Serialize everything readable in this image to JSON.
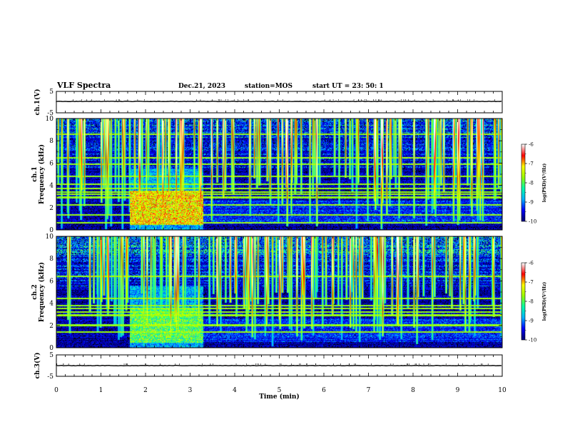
{
  "header": {
    "title": "VLF Spectra",
    "date": "Dec.21, 2023",
    "station": "station=MOS",
    "start_ut": "start  UT =   23: 50: 1"
  },
  "chart_data": {
    "type": "heatmap",
    "xlabel": "Time  (min)",
    "xlim": [
      0,
      10
    ],
    "x_ticks": [
      "0",
      "1",
      "2",
      "3",
      "4",
      "5",
      "6",
      "7",
      "8",
      "9",
      "10"
    ],
    "waveform_top": {
      "ylabel": "ch.1(V)",
      "ylim": [
        -5,
        5
      ],
      "y_ticks": [
        "5",
        "-5"
      ]
    },
    "spectrogram_ch1": {
      "ylabel": "ch.1\nFrequency (kHz)",
      "ylim": [
        0,
        10
      ],
      "y_ticks": [
        "0",
        "2",
        "4",
        "6",
        "8",
        "10"
      ],
      "burst_window_min": [
        1.65,
        3.3
      ],
      "horizontal_lines_khz": [
        0.6,
        1.3,
        2.2,
        2.9,
        3.2,
        3.4,
        3.7,
        4.1,
        4.8,
        5.9,
        6.5,
        8.6
      ],
      "sferic_rate_per_min": 14
    },
    "spectrogram_ch2": {
      "ylabel": "ch.2\nFrequency (kHz)",
      "ylim": [
        0,
        10
      ],
      "y_ticks": [
        "0",
        "2",
        "4",
        "6",
        "8",
        "10"
      ],
      "burst_window_min": [
        1.65,
        3.3
      ],
      "horizontal_lines_khz": [
        1.4,
        2.0,
        2.9,
        3.2,
        3.5,
        3.8,
        4.4,
        6.4
      ],
      "sferic_rate_per_min": 14
    },
    "waveform_bottom": {
      "ylabel": "ch.3(V)",
      "ylim": [
        -5,
        5
      ],
      "y_ticks": [
        "5",
        "-5"
      ]
    },
    "colorbar": {
      "label": "log(PSD)(V²/Hz)",
      "range": [
        -10,
        -6
      ],
      "ticks": [
        "-6",
        "-7",
        "-8",
        "-9",
        "-10"
      ],
      "colors": [
        "#000066",
        "#0000ff",
        "#00b4ff",
        "#00ffaa",
        "#9bff00",
        "#ffff00",
        "#ff0000",
        "#ffffff"
      ]
    }
  }
}
